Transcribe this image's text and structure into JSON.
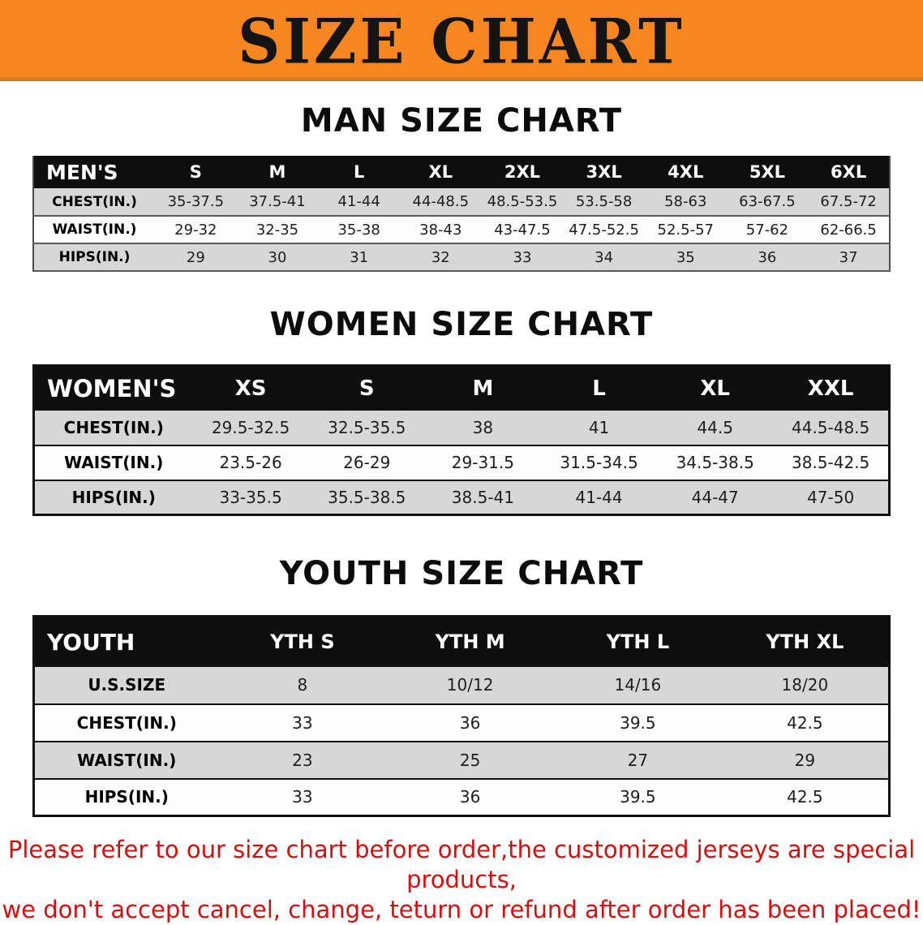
{
  "banner": {
    "title": "SIZE CHART"
  },
  "colors": {
    "banner_bg": "#f6861f",
    "header_bg": "#0e0e0e",
    "row_alt": "#d7d7d7",
    "note_red": "#d40f0f"
  },
  "sections": [
    {
      "heading": "MAN SIZE CHART",
      "table": {
        "corner": "MEN'S",
        "columns": [
          "S",
          "M",
          "L",
          "XL",
          "2XL",
          "3XL",
          "4XL",
          "5XL",
          "6XL"
        ],
        "rows": [
          {
            "label": "CHEST(IN.)",
            "values": [
              "35-37.5",
              "37.5-41",
              "41-44",
              "44-48.5",
              "48.5-53.5",
              "53.5-58",
              "58-63",
              "63-67.5",
              "67.5-72"
            ]
          },
          {
            "label": "WAIST(IN.)",
            "values": [
              "29-32",
              "32-35",
              "35-38",
              "38-43",
              "43-47.5",
              "47.5-52.5",
              "52.5-57",
              "57-62",
              "62-66.5"
            ]
          },
          {
            "label": "HIPS(IN.)",
            "values": [
              "29",
              "30",
              "31",
              "32",
              "33",
              "34",
              "35",
              "36",
              "37"
            ]
          }
        ]
      }
    },
    {
      "heading": "WOMEN SIZE CHART",
      "table": {
        "corner": "WOMEN'S",
        "columns": [
          "XS",
          "S",
          "M",
          "L",
          "XL",
          "XXL"
        ],
        "rows": [
          {
            "label": "CHEST(IN.)",
            "values": [
              "29.5-32.5",
              "32.5-35.5",
              "38",
              "41",
              "44.5",
              "44.5-48.5"
            ]
          },
          {
            "label": "WAIST(IN.)",
            "values": [
              "23.5-26",
              "26-29",
              "29-31.5",
              "31.5-34.5",
              "34.5-38.5",
              "38.5-42.5"
            ]
          },
          {
            "label": "HIPS(IN.)",
            "values": [
              "33-35.5",
              "35.5-38.5",
              "38.5-41",
              "41-44",
              "44-47",
              "47-50"
            ]
          }
        ]
      }
    },
    {
      "heading": "YOUTH SIZE CHART",
      "table": {
        "corner": "YOUTH",
        "columns": [
          "YTH S",
          "YTH M",
          "YTH L",
          "YTH XL"
        ],
        "rows": [
          {
            "label": "U.S.SIZE",
            "values": [
              "8",
              "10/12",
              "14/16",
              "18/20"
            ]
          },
          {
            "label": "CHEST(IN.)",
            "values": [
              "33",
              "36",
              "39.5",
              "42.5"
            ]
          },
          {
            "label": "WAIST(IN.)",
            "values": [
              "23",
              "25",
              "27",
              "29"
            ]
          },
          {
            "label": "HIPS(IN.)",
            "values": [
              "33",
              "36",
              "39.5",
              "42.5"
            ]
          }
        ]
      }
    }
  ],
  "note": {
    "line1": "Please refer to our size chart before order,the customized jerseys are special products,",
    "line2": "we don't accept cancel, change, teturn or refund after order has been placed!"
  }
}
